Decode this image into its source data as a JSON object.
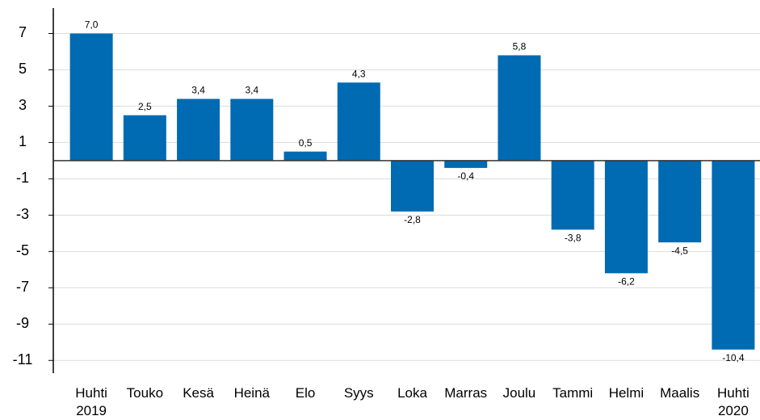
{
  "chart_data": {
    "type": "bar",
    "categories": [
      "Huhti\n2019",
      "Touko",
      "Kesä",
      "Heinä",
      "Elo",
      "Syys",
      "Loka",
      "Marras",
      "Joulu",
      "Tammi",
      "Helmi",
      "Maalis",
      "Huhti\n2020"
    ],
    "values": [
      7.0,
      2.5,
      3.4,
      3.4,
      0.5,
      4.3,
      -2.8,
      -0.4,
      5.8,
      -3.8,
      -6.2,
      -4.5,
      -10.4
    ],
    "value_labels": [
      "7,0",
      "2,5",
      "3,4",
      "3,4",
      "0,5",
      "4,3",
      "-2,8",
      "-0,4",
      "5,8",
      "-3,8",
      "-6,2",
      "-4,5",
      "-10,4"
    ],
    "color": "#006ab2",
    "ylim": [
      -11.7,
      8.4
    ],
    "yticks": [
      7,
      5,
      3,
      1,
      -1,
      -3,
      -5,
      -7,
      -9,
      -11
    ],
    "grid": true
  }
}
